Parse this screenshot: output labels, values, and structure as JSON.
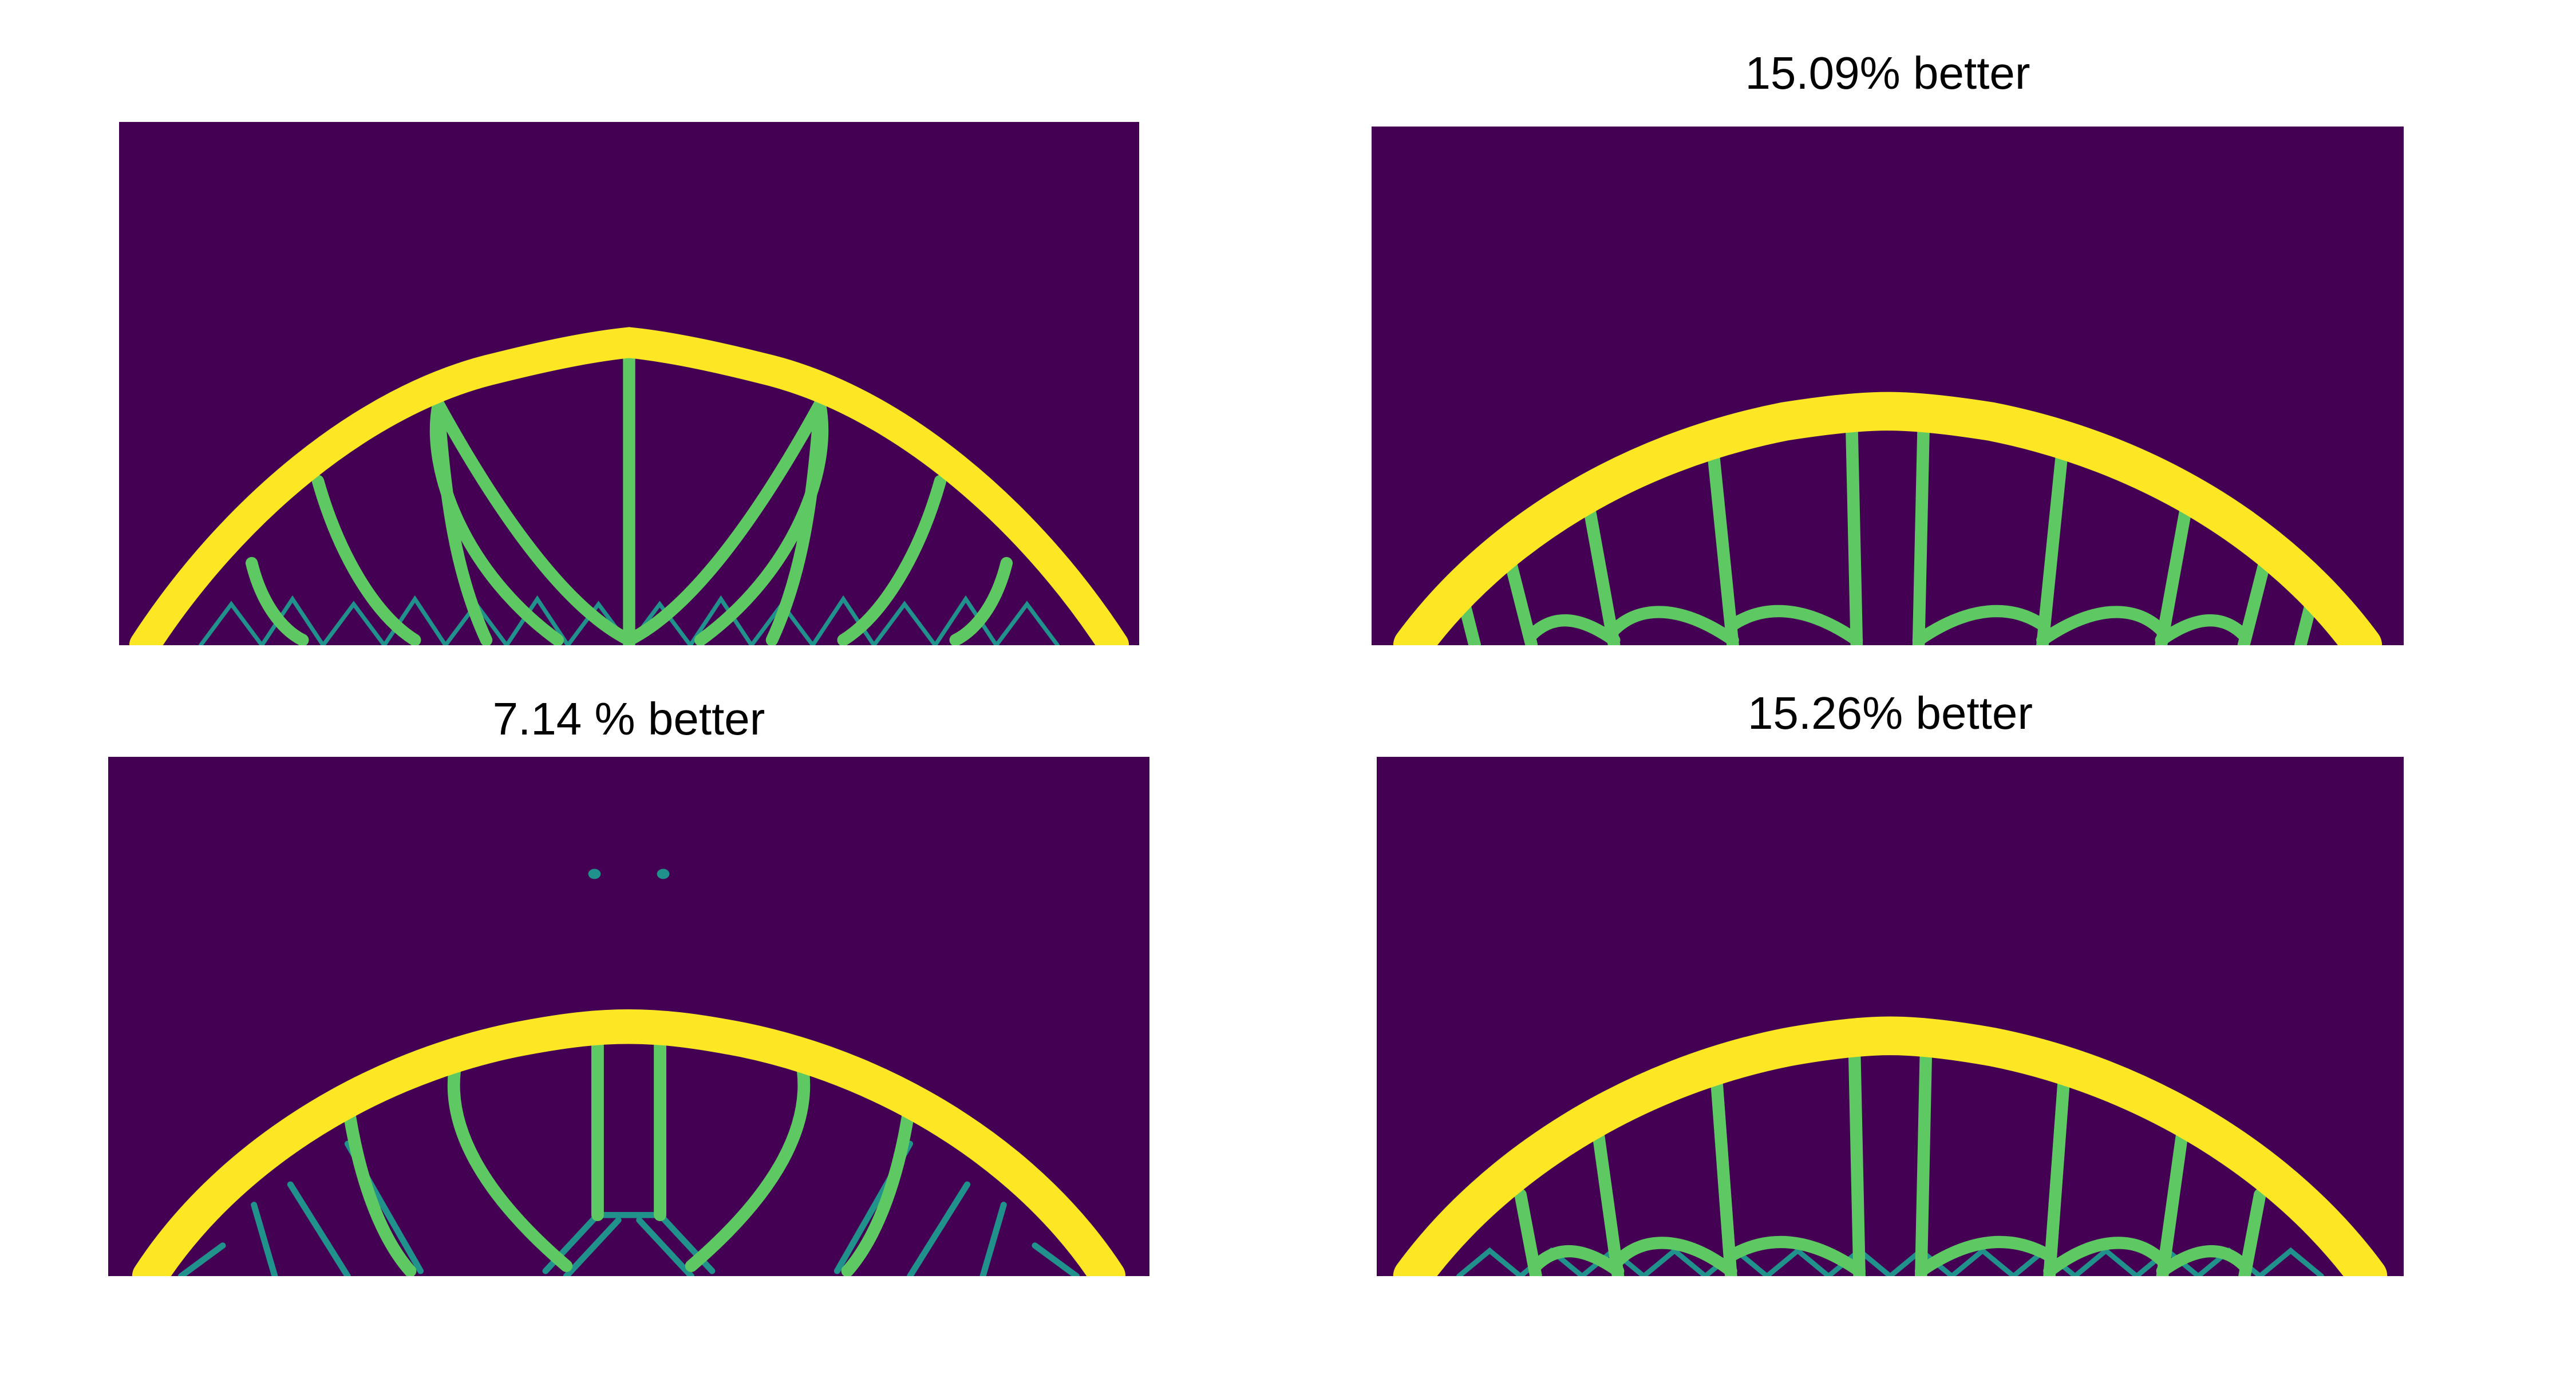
{
  "colors": {
    "background": "#440154",
    "solid": "#fde725",
    "intermediate": "#21918c",
    "edge": "#5ec962"
  },
  "panels": [
    {
      "id": "panel-top-left",
      "caption": ""
    },
    {
      "id": "panel-top-right",
      "caption": "15.09% better"
    },
    {
      "id": "panel-bottom-left",
      "caption": "7.14 % better"
    },
    {
      "id": "panel-bottom-right",
      "caption": "15.26% better"
    }
  ]
}
